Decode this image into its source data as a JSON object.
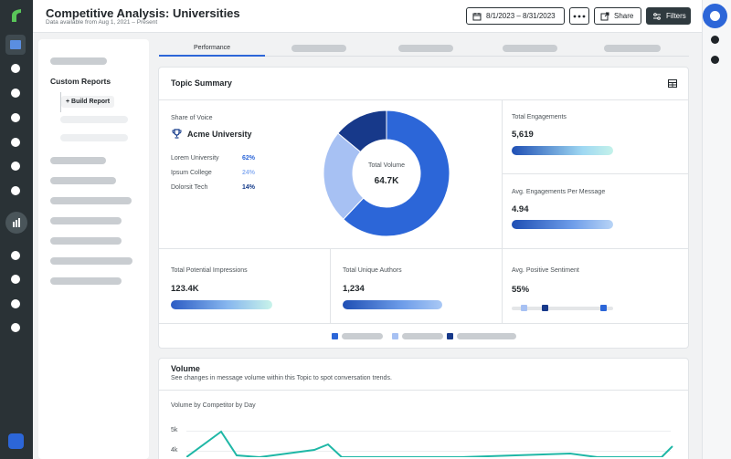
{
  "header": {
    "title": "Competitive Analysis: Universities",
    "subtitle": "Data available from Aug 1, 2021 – Present",
    "date_range": "8/1/2023 – 8/31/2023",
    "share_label": "Share",
    "filters_label": "Filters"
  },
  "sidebar": {
    "custom_reports": "Custom Reports",
    "build_report": "+ Build Report"
  },
  "tabs": {
    "active": "Performance"
  },
  "topic_summary": {
    "title": "Topic Summary",
    "share_of_voice_label": "Share of Voice",
    "leader": "Acme University",
    "competitors": [
      {
        "name": "Lorem University",
        "pct": "62%",
        "color": "#2c66d8"
      },
      {
        "name": "Ipsum College",
        "pct": "24%",
        "color": "#8fb2f2"
      },
      {
        "name": "Dolorsit Tech",
        "pct": "14%",
        "color": "#133a8a"
      }
    ],
    "donut": {
      "center_label": "Total Volume",
      "center_value": "64.7K",
      "slices": [
        {
          "value": 62,
          "color": "#2c66d8"
        },
        {
          "value": 24,
          "color": "#a7c1f3"
        },
        {
          "value": 14,
          "color": "#17398a"
        }
      ]
    },
    "total_engagements_label": "Total Engagements",
    "total_engagements_value": "5,619",
    "avg_eng_label": "Avg. Engagements Per Message",
    "avg_eng_value": "4.94",
    "impressions_label": "Total Potential Impressions",
    "impressions_value": "123.4K",
    "authors_label": "Total Unique Authors",
    "authors_value": "1,234",
    "sentiment_label": "Avg. Positive Sentiment",
    "sentiment_value": "55%"
  },
  "volume": {
    "title": "Volume",
    "description": "See changes in message volume within this Topic to spot conversation trends.",
    "chart_title": "Volume by Competitor by Day",
    "y_ticks": [
      "5k",
      "4k"
    ]
  },
  "colors": {
    "accent": "#2c66d8",
    "rail": "#2a3236",
    "teal": "#1fb7a6"
  },
  "icons": [
    "calendar-icon",
    "more-icon",
    "share-icon",
    "filters-icon",
    "trophy-icon",
    "table-icon",
    "folder-icon",
    "bar-chart-icon"
  ]
}
